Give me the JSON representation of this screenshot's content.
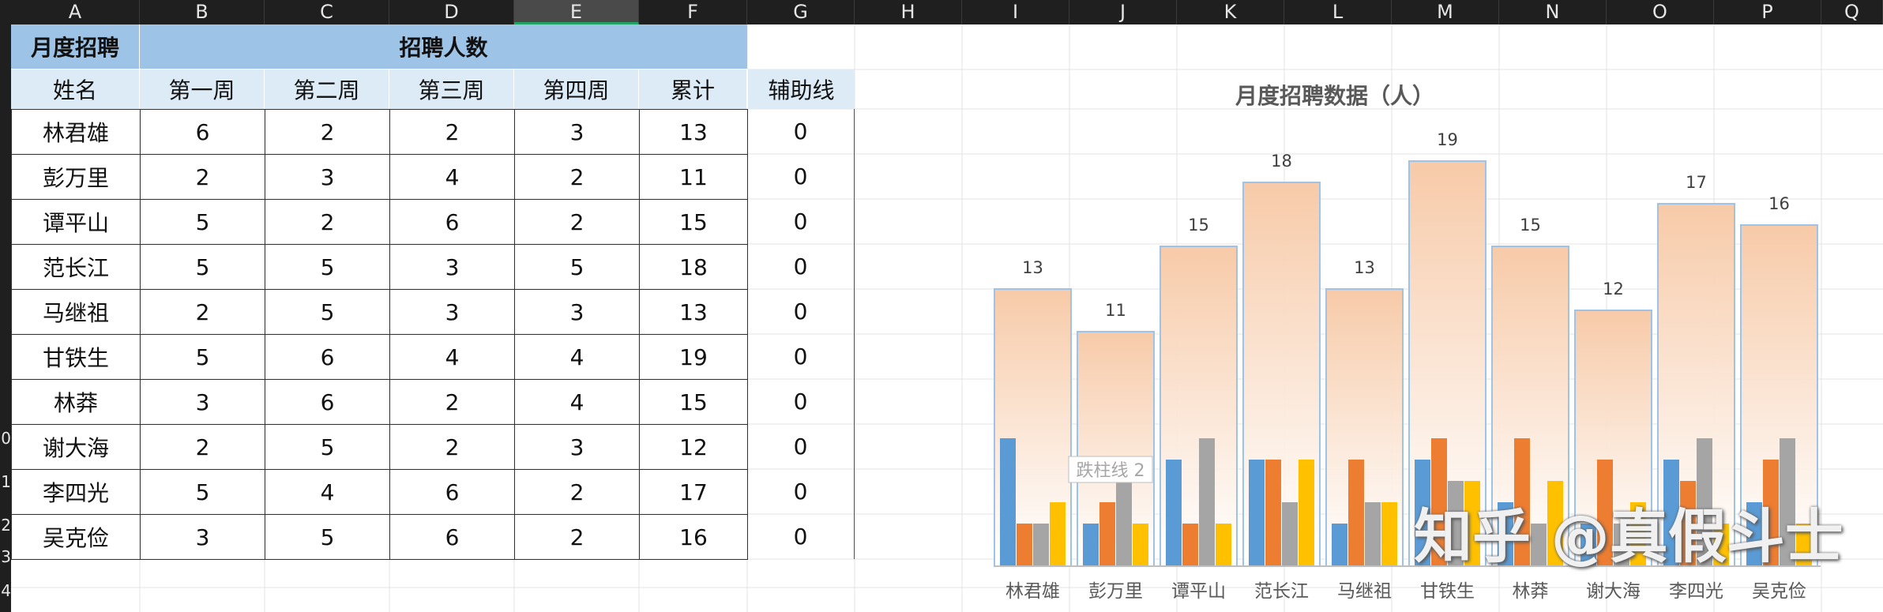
{
  "columns": [
    "A",
    "B",
    "C",
    "D",
    "E",
    "F",
    "G",
    "H",
    "I",
    "J",
    "K",
    "L",
    "M",
    "N",
    "O",
    "P",
    "Q"
  ],
  "rows": [
    "0",
    "1",
    "2",
    "3",
    "4"
  ],
  "table": {
    "title": "月度招聘",
    "group_header": "招聘人数",
    "headers": [
      "姓名",
      "第一周",
      "第二周",
      "第三周",
      "第四周",
      "累计"
    ],
    "aux_header": "辅助线",
    "records": [
      {
        "name": "林君雄",
        "w1": "6",
        "w2": "2",
        "w3": "2",
        "w4": "3",
        "total": "13",
        "aux": "0"
      },
      {
        "name": "彭万里",
        "w1": "2",
        "w2": "3",
        "w3": "4",
        "w4": "2",
        "total": "11",
        "aux": "0"
      },
      {
        "name": "谭平山",
        "w1": "5",
        "w2": "2",
        "w3": "6",
        "w4": "2",
        "total": "15",
        "aux": "0"
      },
      {
        "name": "范长江",
        "w1": "5",
        "w2": "5",
        "w3": "3",
        "w4": "5",
        "total": "18",
        "aux": "0"
      },
      {
        "name": "马继祖",
        "w1": "2",
        "w2": "5",
        "w3": "3",
        "w4": "3",
        "total": "13",
        "aux": "0"
      },
      {
        "name": "甘铁生",
        "w1": "5",
        "w2": "6",
        "w3": "4",
        "w4": "4",
        "total": "19",
        "aux": "0"
      },
      {
        "name": "林莽",
        "w1": "3",
        "w2": "6",
        "w3": "2",
        "w4": "4",
        "total": "15",
        "aux": "0"
      },
      {
        "name": "谢大海",
        "w1": "2",
        "w2": "5",
        "w3": "2",
        "w4": "3",
        "total": "12",
        "aux": "0"
      },
      {
        "name": "李四光",
        "w1": "5",
        "w2": "4",
        "w3": "6",
        "w4": "2",
        "total": "17",
        "aux": "0"
      },
      {
        "name": "吴克俭",
        "w1": "3",
        "w2": "5",
        "w3": "6",
        "w4": "2",
        "total": "16",
        "aux": "0"
      }
    ]
  },
  "chart_data": {
    "type": "bar",
    "title": "月度招聘数据（人）",
    "categories": [
      "林君雄",
      "彭万里",
      "谭平山",
      "范长江",
      "马继祖",
      "甘铁生",
      "林莽",
      "谢大海",
      "李四光",
      "吴克俭"
    ],
    "totals": [
      13,
      11,
      15,
      18,
      13,
      19,
      15,
      12,
      17,
      16
    ],
    "series": [
      {
        "values": [
          6,
          2,
          5,
          5,
          2,
          5,
          3,
          2,
          5,
          3
        ],
        "color": "#5b9bd5"
      },
      {
        "values": [
          2,
          3,
          2,
          5,
          5,
          6,
          6,
          5,
          4,
          5
        ],
        "color": "#ed7d31"
      },
      {
        "values": [
          2,
          4,
          6,
          3,
          3,
          4,
          2,
          2,
          6,
          6
        ],
        "color": "#a5a5a5"
      },
      {
        "values": [
          3,
          2,
          2,
          5,
          3,
          4,
          4,
          3,
          2,
          2
        ],
        "color": "#ffc000"
      }
    ],
    "tooltip": "跌柱线 2",
    "ylim": [
      0,
      20
    ]
  },
  "watermark": "知乎 @真假斗士"
}
